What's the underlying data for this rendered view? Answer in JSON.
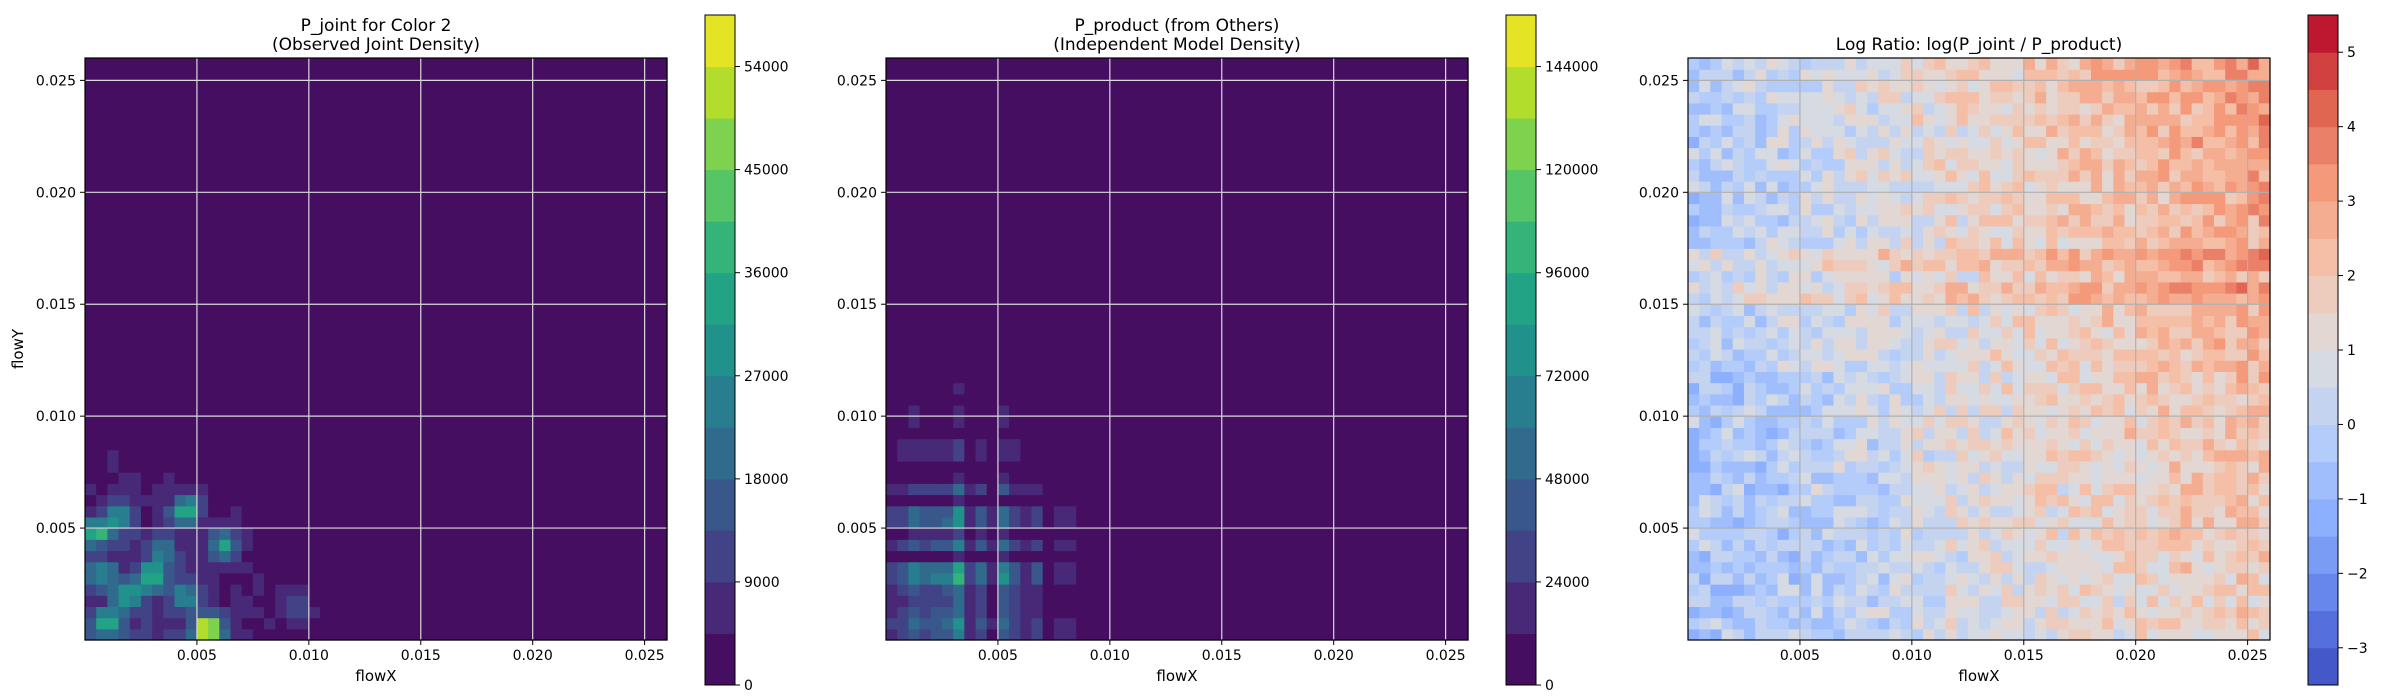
{
  "chart_data": [
    {
      "type": "heatmap",
      "title": "P_joint for Color 2\n(Observed Joint Density)",
      "xlabel": "flowX",
      "ylabel": "flowY",
      "xlim": [
        0.0,
        0.026
      ],
      "ylim": [
        0.0,
        0.026
      ],
      "xticks": [
        0.005,
        0.01,
        0.015,
        0.02,
        0.025
      ],
      "xtick_labels": [
        "0.005",
        "0.010",
        "0.015",
        "0.020",
        "0.025"
      ],
      "yticks": [
        0.005,
        0.01,
        0.015,
        0.02,
        0.025
      ],
      "ytick_labels": [
        "0.005",
        "0.010",
        "0.015",
        "0.020",
        "0.025"
      ],
      "grid": true,
      "colormap": "viridis",
      "colorbar": {
        "min": 0,
        "max": 58500,
        "ticks": [
          0,
          9000,
          18000,
          27000,
          36000,
          45000,
          54000
        ],
        "tick_labels": [
          "0",
          "9000",
          "18000",
          "27000",
          "36000",
          "45000",
          "54000"
        ],
        "levels": 13
      },
      "hotspots": [
        {
          "x": 0.0045,
          "y": 0.0058,
          "value": 36000
        },
        {
          "x": 0.001,
          "y": 0.0008,
          "value": 30000
        },
        {
          "x": 0.003,
          "y": 0.0028,
          "value": 32000
        },
        {
          "x": 0.0062,
          "y": 0.0043,
          "value": 27000
        },
        {
          "x": 0.0055,
          "y": 0.0005,
          "value": 58000
        },
        {
          "x": 0.0015,
          "y": 0.0055,
          "value": 24000
        },
        {
          "x": 0.002,
          "y": 0.002,
          "value": 27000
        },
        {
          "x": 0.0005,
          "y": 0.0048,
          "value": 30000
        },
        {
          "x": 0.0045,
          "y": 0.002,
          "value": 20000
        },
        {
          "x": 0.0035,
          "y": 0.004,
          "value": 18000
        },
        {
          "x": 0.0008,
          "y": 0.003,
          "value": 22000
        },
        {
          "x": 0.0095,
          "y": 0.0015,
          "value": 12000
        }
      ]
    },
    {
      "type": "heatmap",
      "title": "P_product (from Others)\n(Independent Model Density)",
      "xlabel": "flowX",
      "ylabel": "",
      "xlim": [
        0.0,
        0.026
      ],
      "ylim": [
        0.0,
        0.026
      ],
      "xticks": [
        0.005,
        0.01,
        0.015,
        0.02,
        0.025
      ],
      "xtick_labels": [
        "0.005",
        "0.010",
        "0.015",
        "0.020",
        "0.025"
      ],
      "yticks": [
        0.005,
        0.01,
        0.015,
        0.02,
        0.025
      ],
      "ytick_labels": [
        "0.005",
        "0.010",
        "0.015",
        "0.020",
        "0.025"
      ],
      "grid": true,
      "colormap": "viridis",
      "colorbar": {
        "min": 0,
        "max": 156000,
        "ticks": [
          0,
          24000,
          48000,
          72000,
          96000,
          120000,
          144000
        ],
        "tick_labels": [
          "0",
          "24000",
          "48000",
          "72000",
          "96000",
          "120000",
          "144000"
        ],
        "levels": 13
      },
      "x_peaks": [
        {
          "x": 0.0005,
          "w": 0.4
        },
        {
          "x": 0.0013,
          "w": 0.55
        },
        {
          "x": 0.0021,
          "w": 0.6
        },
        {
          "x": 0.0031,
          "w": 1.0
        },
        {
          "x": 0.0042,
          "w": 0.5
        },
        {
          "x": 0.0054,
          "w": 0.75
        },
        {
          "x": 0.0066,
          "w": 0.4
        },
        {
          "x": 0.008,
          "w": 0.25
        },
        {
          "x": 0.01,
          "w": 0.1
        }
      ],
      "y_peaks": [
        {
          "y": 0.0003,
          "w": 0.45
        },
        {
          "y": 0.001,
          "w": 0.6
        },
        {
          "y": 0.002,
          "w": 0.55
        },
        {
          "y": 0.003,
          "w": 1.0
        },
        {
          "y": 0.0043,
          "w": 0.5
        },
        {
          "y": 0.0055,
          "w": 0.8
        },
        {
          "y": 0.0068,
          "w": 0.4
        },
        {
          "y": 0.0085,
          "w": 0.3
        },
        {
          "y": 0.01,
          "w": 0.2
        },
        {
          "y": 0.0113,
          "w": 0.1
        }
      ]
    },
    {
      "type": "heatmap",
      "title": "Log Ratio: log(P_joint / P_product)",
      "xlabel": "flowX",
      "ylabel": "",
      "xlim": [
        0.0,
        0.026
      ],
      "ylim": [
        0.0,
        0.026
      ],
      "xticks": [
        0.005,
        0.01,
        0.015,
        0.02,
        0.025
      ],
      "xtick_labels": [
        "0.005",
        "0.010",
        "0.015",
        "0.020",
        "0.025"
      ],
      "yticks": [
        0.005,
        0.01,
        0.015,
        0.02,
        0.025
      ],
      "ytick_labels": [
        "0.005",
        "0.010",
        "0.015",
        "0.020",
        "0.025"
      ],
      "grid": true,
      "colormap": "coolwarm",
      "colorbar": {
        "min": -3.5,
        "max": 5.5,
        "ticks": [
          -3,
          -2,
          -1,
          0,
          1,
          2,
          3,
          4,
          5
        ],
        "tick_labels": [
          "−3",
          "−2",
          "−1",
          "0",
          "1",
          "2",
          "3",
          "4",
          "5"
        ],
        "levels": 18
      }
    }
  ]
}
